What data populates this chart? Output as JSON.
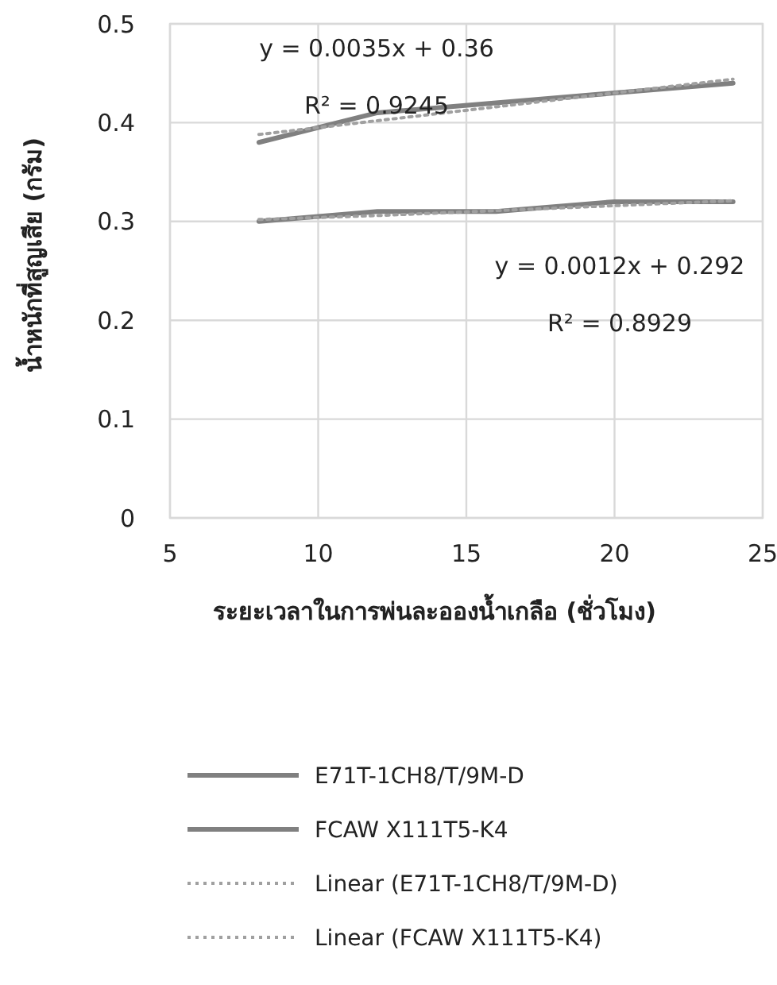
{
  "chart_data": {
    "type": "line",
    "xlabel": "ระยะเวลาในการพ่นละอองน้ำเกลือ (ชั่วโมง)",
    "ylabel": "น้ำหนักที่สูญเสีย (กรัม)",
    "x": [
      8,
      12,
      16,
      20,
      24
    ],
    "series": [
      {
        "name": "E71T-1CH8/T/9M-D",
        "color": "#808080",
        "values": [
          0.38,
          0.41,
          0.42,
          0.43,
          0.44
        ],
        "line_style": "solid"
      },
      {
        "name": "FCAW X111T5-K4",
        "color": "#808080",
        "values": [
          0.3,
          0.31,
          0.31,
          0.32,
          0.32
        ],
        "line_style": "solid"
      },
      {
        "name": "Linear (E71T-1CH8/T/9M-D)",
        "color": "#a0a0a0",
        "values": [
          0.388,
          0.402,
          0.416,
          0.43,
          0.444
        ],
        "line_style": "dotted"
      },
      {
        "name": "Linear (FCAW X111T5-K4)",
        "color": "#a0a0a0",
        "values": [
          0.302,
          0.306,
          0.311,
          0.316,
          0.321
        ],
        "line_style": "dotted"
      }
    ],
    "xlim": [
      5,
      25
    ],
    "xticks": [
      5,
      10,
      15,
      20,
      25
    ],
    "ylim": [
      0,
      0.5
    ],
    "yticks": [
      0,
      0.1,
      0.2,
      0.3,
      0.4,
      0.5
    ],
    "grid": true,
    "legend": "bottom",
    "marker": "none",
    "annotations": [
      "y = 0.0035x + 0.36",
      "R² = 0.9245",
      "y = 0.0012x + 0.292",
      "R² = 0.8929"
    ]
  }
}
